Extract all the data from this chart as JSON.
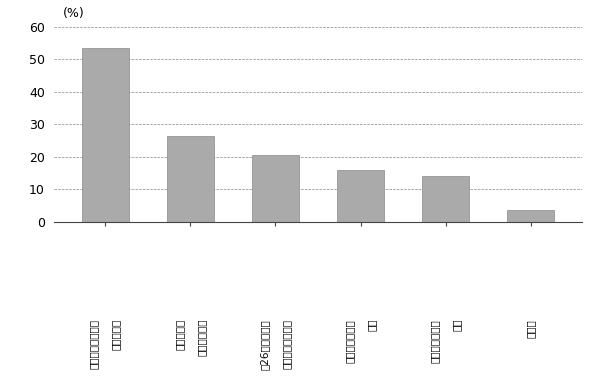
{
  "bar_labels_left": [
    "消費税損税の解消",
    "措置の存続",
    "法26条）の存続",
    "一人医療法人の",
    "医療法人制度の",
    "その他"
  ],
  "bar_labels_right": [
    "医療に係る",
    "事業税非課税",
    "４段階税制（措置",
    "改善",
    "改善",
    ""
  ],
  "values": [
    53.5,
    26.5,
    20.5,
    16.0,
    14.0,
    3.5
  ],
  "bar_color": "#aaaaaa",
  "bar_edge_color": "#888888",
  "ylim": [
    0,
    60
  ],
  "yticks": [
    0,
    10,
    20,
    30,
    40,
    50,
    60
  ],
  "percent_label": "(%)",
  "background_color": "#ffffff",
  "grid_color": "#555555"
}
